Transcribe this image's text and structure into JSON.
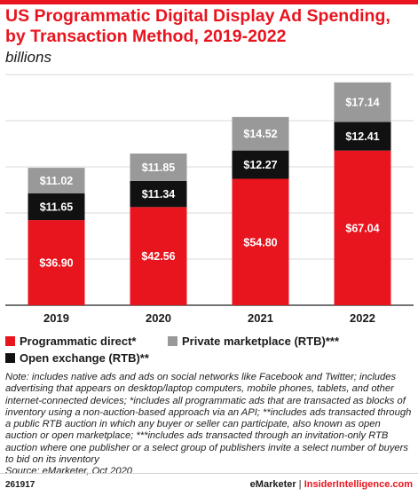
{
  "title": "US Programmatic Digital Display Ad Spending, by Transaction Method, 2019-2022",
  "subtitle": "billions",
  "colors": {
    "accent": "#e8141e",
    "programmatic_direct": "#e8141e",
    "open_exchange": "#111111",
    "private_marketplace": "#999999"
  },
  "chart_data": {
    "type": "bar",
    "stacked": true,
    "categories": [
      "2019",
      "2020",
      "2021",
      "2022"
    ],
    "series": [
      {
        "name": "Programmatic direct*",
        "values": [
          36.9,
          42.56,
          54.8,
          67.04
        ],
        "labels": [
          "$36.90",
          "$42.56",
          "$54.80",
          "$67.04"
        ]
      },
      {
        "name": "Open exchange (RTB)**",
        "values": [
          11.65,
          11.34,
          12.27,
          12.41
        ],
        "labels": [
          "$11.65",
          "$11.34",
          "$12.27",
          "$12.41"
        ]
      },
      {
        "name": "Private marketplace (RTB)***",
        "values": [
          11.02,
          11.85,
          14.52,
          17.14
        ],
        "labels": [
          "$11.02",
          "$11.85",
          "$14.52",
          "$17.14"
        ]
      }
    ],
    "ylim": [
      0,
      100
    ],
    "grid": true,
    "legend": "bottom"
  },
  "note": "Note: includes native ads and ads on social networks like Facebook and Twitter; includes advertising that appears on desktop/laptop computers, mobile phones, tablets, and other internet-connected devices; *includes all programmatic ads that are transacted as blocks of inventory using a non-auction-based approach via an API; **includes ads transacted through a public RTB auction in which any buyer or seller can participate, also known as open auction or open marketplace; ***includes ads transacted through an invitation-only RTB auction where one publisher or a select group of publishers invite a select number of buyers to bid on its inventory",
  "source": "Source: eMarketer, Oct 2020",
  "footer": {
    "code": "261917",
    "brand1": "eMarketer",
    "separator": "|",
    "brand2": "InsiderIntelligence.com"
  }
}
